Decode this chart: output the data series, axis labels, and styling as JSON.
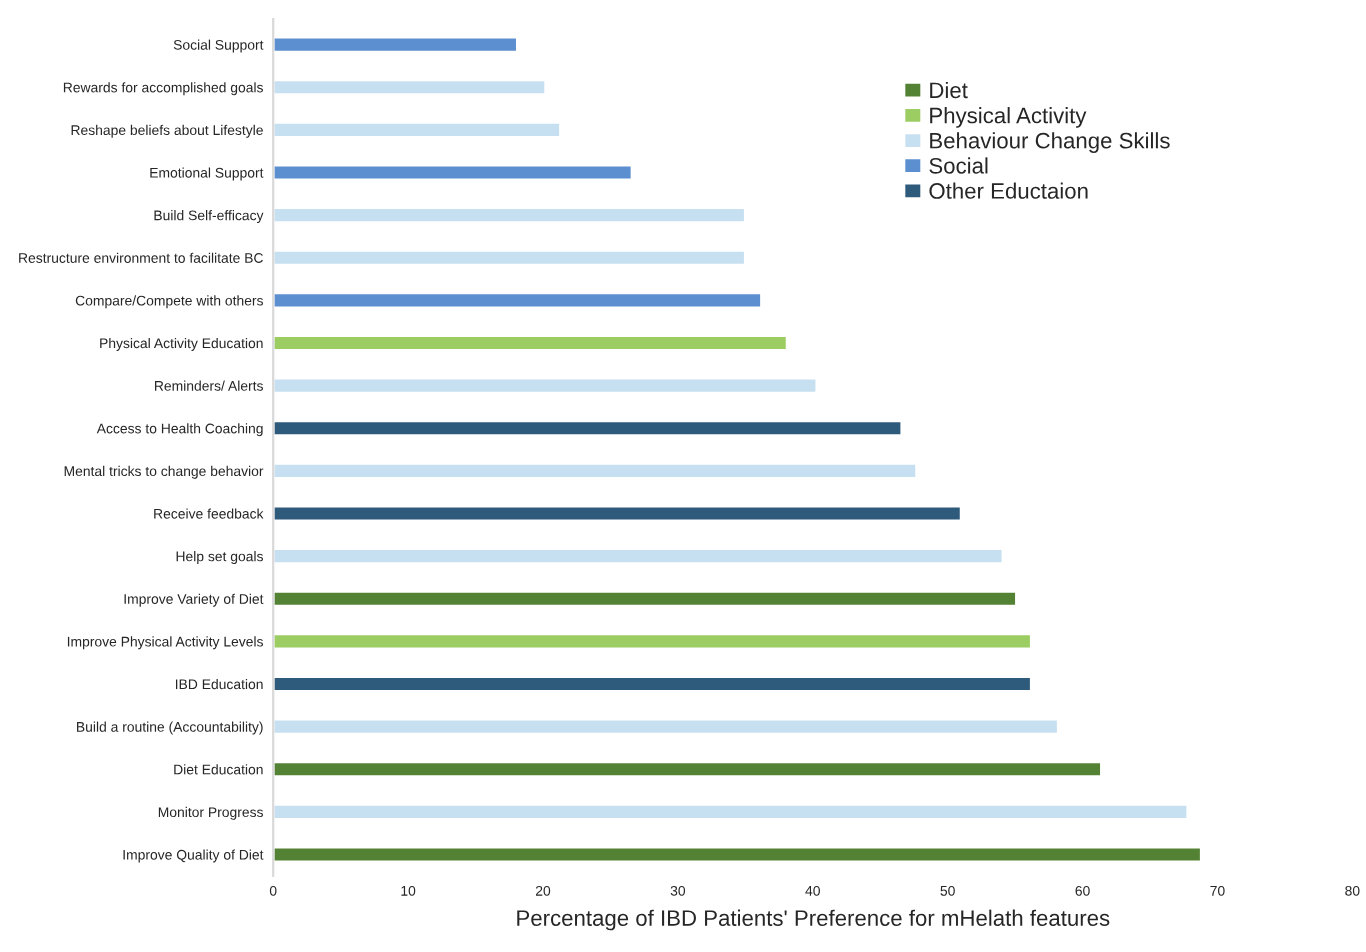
{
  "chart_data": {
    "type": "bar",
    "orientation": "horizontal",
    "xlabel": "Percentage of IBD Patients' Preference for mHelath features",
    "categories": [
      "Social Support",
      "Rewards for accomplished goals",
      "Reshape beliefs about Lifestyle",
      "Emotional Support",
      "Build Self-efficacy",
      "Restructure environment to facilitate BC",
      "Compare/Compete with others",
      "Physical Activity Education",
      "Reminders/ Alerts",
      "Access to Health Coaching",
      "Mental tricks to change behavior",
      "Receive feedback",
      "Help set goals",
      "Improve Variety of Diet",
      "Improve Physical Activity Levels",
      "IBD Education",
      "Build a routine (Accountability)",
      "Diet Education",
      "Monitor Progress",
      "Improve Quality of Diet"
    ],
    "series": [
      {
        "name": "Diet",
        "color": "#548235",
        "values": [
          null,
          null,
          null,
          null,
          null,
          null,
          null,
          null,
          null,
          null,
          null,
          null,
          null,
          55.1,
          null,
          null,
          null,
          61.4,
          null,
          68.8
        ]
      },
      {
        "name": "Physical Activity",
        "color": "#9bcd62",
        "values": [
          null,
          null,
          null,
          null,
          null,
          null,
          null,
          38.1,
          null,
          null,
          null,
          null,
          null,
          null,
          56.2,
          null,
          null,
          null,
          null,
          null
        ]
      },
      {
        "name": "Behaviour Change Skills",
        "color": "#c7e0f1",
        "values": [
          null,
          20.2,
          21.3,
          null,
          35.0,
          35.0,
          null,
          null,
          40.3,
          null,
          47.7,
          null,
          54.1,
          null,
          null,
          null,
          58.2,
          null,
          67.8,
          null
        ]
      },
      {
        "name": "Social",
        "color": "#5b8fd0",
        "values": [
          18.1,
          null,
          null,
          26.6,
          null,
          null,
          36.2,
          null,
          null,
          null,
          null,
          null,
          null,
          null,
          null,
          null,
          null,
          null,
          null,
          null
        ]
      },
      {
        "name": "Other Eductaion",
        "color": "#2e5a7c",
        "values": [
          null,
          null,
          null,
          null,
          null,
          null,
          null,
          null,
          null,
          46.6,
          null,
          51.0,
          null,
          null,
          null,
          56.2,
          null,
          null,
          null,
          null
        ]
      }
    ],
    "xlim": [
      0,
      80
    ],
    "xticks": [
      0,
      10,
      20,
      30,
      40,
      50,
      60,
      70,
      80
    ],
    "legend": "top right",
    "grid": false
  }
}
